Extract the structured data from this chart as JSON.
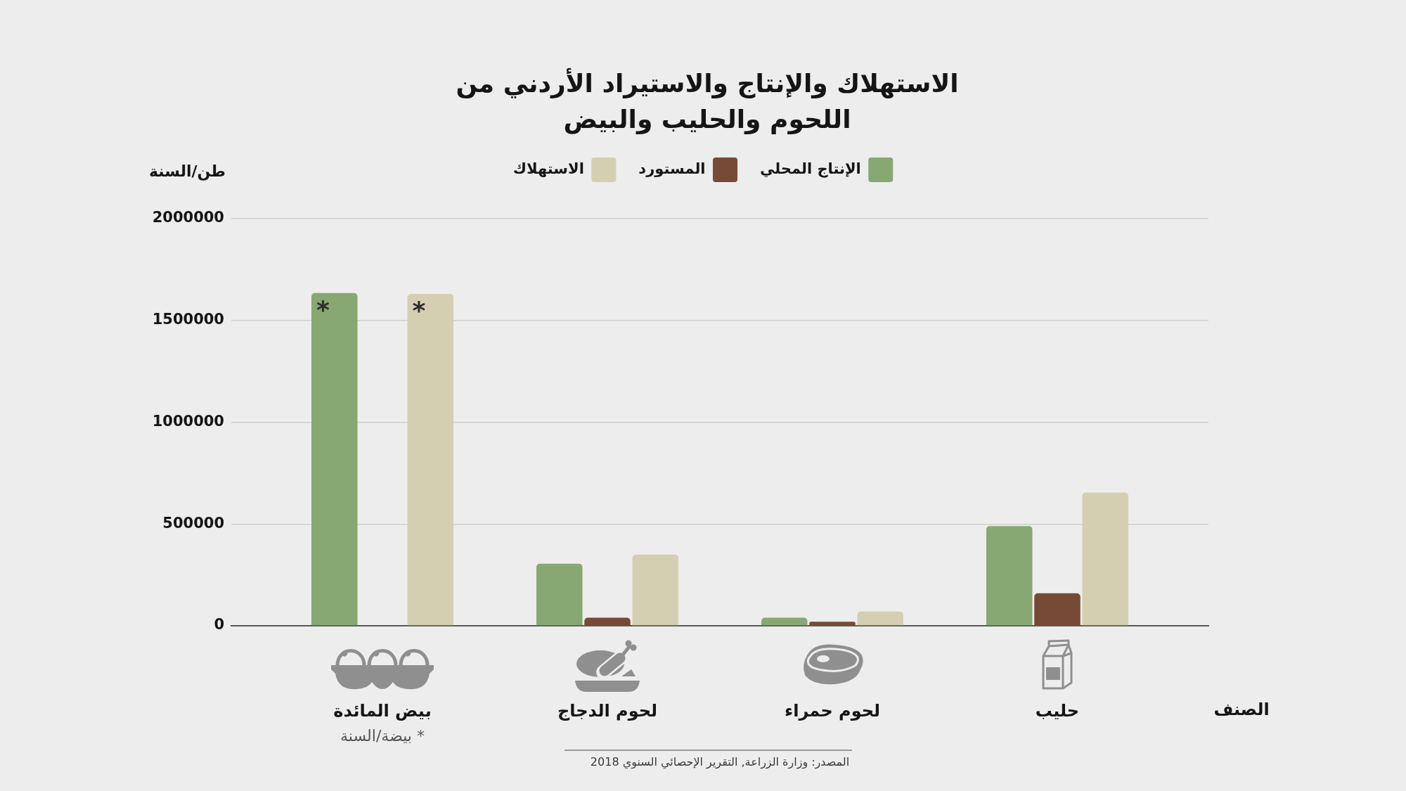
{
  "chart_data": {
    "type": "bar",
    "title": "الاستهلاك والإنتاج والاستيراد الأردني من اللحوم والحليب والبيض",
    "xlabel": "الصنف",
    "ylabel": "طن/السنة",
    "categories": [
      "بيض المائدة",
      "لحوم الدجاج",
      "لحوم حمراء",
      "حليب"
    ],
    "series": [
      {
        "name": "الإنتاج المحلي",
        "color": "#87a872",
        "values": [
          1635000,
          305000,
          40000,
          490000
        ]
      },
      {
        "name": "المستورد",
        "color": "#774a37",
        "values": [
          null,
          40000,
          20000,
          160000
        ]
      },
      {
        "name": "الاستهلاك",
        "color": "#d5cfb2",
        "values": [
          1630000,
          350000,
          70000,
          655000
        ]
      }
    ],
    "ylim": [
      0,
      2000000
    ],
    "yticks": [
      0,
      500000,
      1000000,
      1500000,
      2000000
    ],
    "grid": "y",
    "legend": "top",
    "annotations": [
      "*",
      "*",
      "* بيضة/السنة",
      "المصدر: وزارة الزراعة, التقرير الإحصائي السنوي 2018"
    ]
  }
}
